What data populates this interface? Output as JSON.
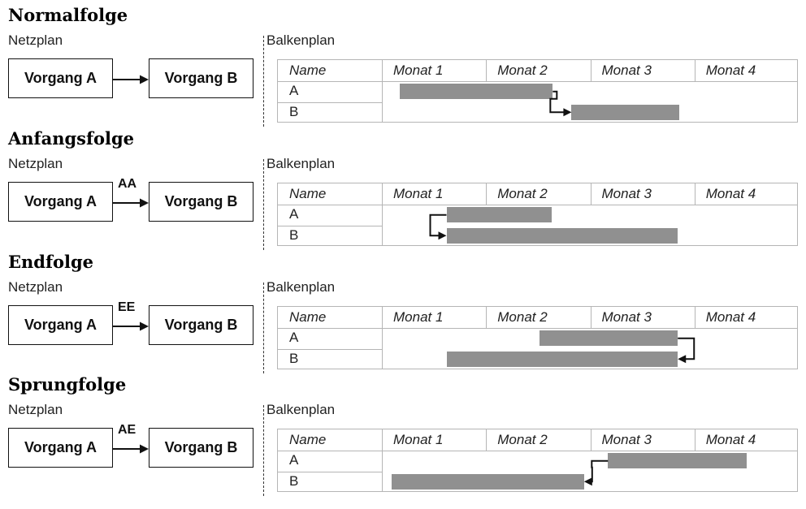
{
  "common": {
    "netzplan_label": "Netzplan",
    "balkenplan_label": "Balkenplan",
    "task_a": "Vorgang A",
    "task_b": "Vorgang B",
    "columns": [
      "Name",
      "Monat 1",
      "Monat 2",
      "Monat 3",
      "Monat 4"
    ],
    "rows": [
      "A",
      "B"
    ],
    "bar_color": "#909090",
    "grid_color": "#b5b5b5"
  },
  "sections": [
    {
      "title": "Normalfolge",
      "relation_label": "",
      "bars": [
        {
          "start": 0.17,
          "end": 1.64
        },
        {
          "start": 1.82,
          "end": 2.85
        }
      ],
      "link": "finish-to-start"
    },
    {
      "title": "Anfangsfolge",
      "relation_label": "AA",
      "bars": [
        {
          "start": 0.62,
          "end": 1.63
        },
        {
          "start": 0.62,
          "end": 2.84
        }
      ],
      "link": "start-to-start"
    },
    {
      "title": "Endfolge",
      "relation_label": "EE",
      "bars": [
        {
          "start": 1.51,
          "end": 2.84
        },
        {
          "start": 0.62,
          "end": 2.84
        }
      ],
      "link": "finish-to-finish"
    },
    {
      "title": "Sprungfolge",
      "relation_label": "AE",
      "bars": [
        {
          "start": 2.17,
          "end": 3.5
        },
        {
          "start": 0.09,
          "end": 1.94
        }
      ],
      "link": "start-to-finish"
    }
  ]
}
